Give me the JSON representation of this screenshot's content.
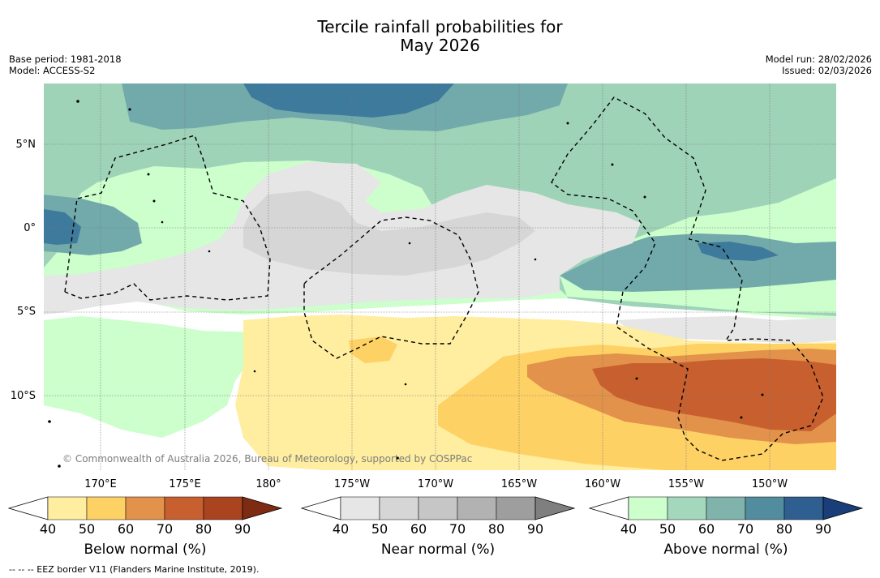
{
  "title": {
    "line1": "Tercile rainfall probabilities for",
    "line2": "May 2026"
  },
  "meta": {
    "base_period": "Base period: 1981-2018",
    "model": "Model: ACCESS-S2",
    "model_run": "Model run: 28/02/2026",
    "issued": "Issued: 02/03/2026"
  },
  "map": {
    "lat_labels": [
      "5°N",
      "0°",
      "5°S",
      "10°S"
    ],
    "lon_labels": [
      "170°E",
      "175°E",
      "180°",
      "175°W",
      "170°W",
      "165°W",
      "160°W",
      "155°W",
      "150°W"
    ],
    "copyright": "© Commonwealth of Australia 2026, Bureau of Meteorology, supported by COSPPac",
    "colors": {
      "white": "#ffffff",
      "near_normal_40": "#e6e6e6",
      "near_normal_50": "#d6d6d6",
      "below_normal_40": "#ffeda0",
      "below_normal_50": "#fed165",
      "below_normal_60": "#e2924a",
      "below_normal_70": "#c85f2e",
      "above_normal_40": "#ccffcc",
      "above_normal_50": "#9fd3b8",
      "above_normal_60": "#72aaab",
      "above_normal_70": "#3e7a9c",
      "eez_border": "#000000"
    }
  },
  "legend": [
    {
      "title": "Below normal (%)",
      "ticks": [
        "40",
        "50",
        "60",
        "70",
        "80",
        "90"
      ],
      "colors": [
        "#ffffff",
        "#ffeda0",
        "#fed165",
        "#e2924a",
        "#c85f2e",
        "#a9441f",
        "#7e2b14"
      ]
    },
    {
      "title": "Near normal (%)",
      "ticks": [
        "40",
        "50",
        "60",
        "70",
        "80",
        "90"
      ],
      "colors": [
        "#ffffff",
        "#e6e6e6",
        "#d6d6d6",
        "#c6c6c6",
        "#b2b2b2",
        "#9e9e9e",
        "#7f7f7f"
      ]
    },
    {
      "title": "Above normal (%)",
      "ticks": [
        "40",
        "50",
        "60",
        "70",
        "80",
        "90"
      ],
      "colors": [
        "#ffffff",
        "#ccffcc",
        "#a4d8bd",
        "#80b3ac",
        "#528c9f",
        "#2e5f90",
        "#1a3e7a"
      ]
    }
  ],
  "footnote": "--  --  -- EEZ border V11 (Flanders Marine Institute, 2019)."
}
